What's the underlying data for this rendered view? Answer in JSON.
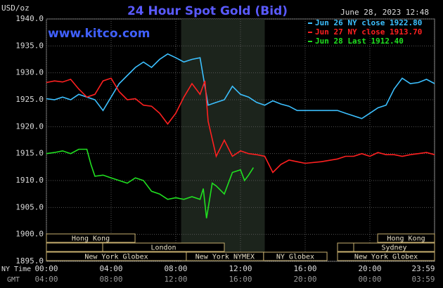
{
  "chart_data": {
    "type": "line",
    "title": "24 Hour Spot Gold (Bid)",
    "site": "www.kitco.com",
    "y_label": "USD/oz",
    "timestamp": "June 28, 2023 12:48",
    "x_row_label": "NY Time",
    "x2_row_label": "GMT",
    "xlim": [
      0,
      24
    ],
    "ylim": [
      1895,
      1940
    ],
    "xticks": [
      {
        "value": 0,
        "label": "00:00"
      },
      {
        "value": 4,
        "label": "04:00"
      },
      {
        "value": 8,
        "label": "08:00"
      },
      {
        "value": 12,
        "label": "12:00"
      },
      {
        "value": 16,
        "label": "16:00"
      },
      {
        "value": 20,
        "label": "20:00"
      },
      {
        "value": 23.98,
        "label": "23:59"
      }
    ],
    "x2tick_labels": [
      "04:00",
      "08:00",
      "12:00",
      "16:00",
      "20:00",
      "00:00",
      "03:59"
    ],
    "yticks": [
      {
        "value": 1940,
        "label": "1940.0"
      },
      {
        "value": 1935,
        "label": "1935.0"
      },
      {
        "value": 1930,
        "label": "1930.0"
      },
      {
        "value": 1925,
        "label": "1925.0"
      },
      {
        "value": 1920,
        "label": "1920.0"
      },
      {
        "value": 1915,
        "label": "1915.0"
      },
      {
        "value": 1910,
        "label": "1910.0"
      },
      {
        "value": 1905,
        "label": "1905.0"
      },
      {
        "value": 1900,
        "label": "1900.0"
      },
      {
        "value": 1895,
        "label": "1895.0"
      }
    ],
    "grid": true,
    "highlight": [
      8.33,
      13.5
    ],
    "sessions": [
      {
        "name": "Hong Kong",
        "start": 0,
        "end": 5.48,
        "row": 0
      },
      {
        "name": "Hong Kong",
        "start": 20.48,
        "end": 24,
        "row": 0
      },
      {
        "start": 0,
        "end": 3.48,
        "row": 1
      },
      {
        "name": "London",
        "start": 3.48,
        "end": 11.0,
        "row": 1
      },
      {
        "start": 18.0,
        "end": 19.0,
        "row": 1
      },
      {
        "name": "Sydney",
        "start": 19.0,
        "end": 24,
        "row": 1
      },
      {
        "name": "New York Globex",
        "start": 0,
        "end": 8.65,
        "row": 2
      },
      {
        "name": "New York NYMEX",
        "start": 8.65,
        "end": 13.43,
        "row": 2
      },
      {
        "name": "NY Globex",
        "start": 13.43,
        "end": 17.35,
        "row": 2
      },
      {
        "name": "New York Globex",
        "start": 18.0,
        "end": 24,
        "row": 2
      }
    ],
    "series": [
      {
        "name": "Jun 26 NY close 1922.80",
        "color": "#3cc0ff",
        "x": [
          0,
          0.5,
          1,
          1.5,
          2,
          2.5,
          3,
          3.5,
          4,
          4.5,
          5,
          5.5,
          6,
          6.5,
          7,
          7.5,
          8,
          8.5,
          9,
          9.5,
          10,
          10.5,
          11,
          11.5,
          12,
          12.5,
          13,
          13.5,
          14,
          14.5,
          15,
          15.5,
          16,
          17,
          18,
          18.5,
          19,
          19.5,
          20,
          20.5,
          21,
          21.5,
          22,
          22.5,
          23,
          23.5,
          24
        ],
        "values": [
          1925.2,
          1925.0,
          1925.5,
          1925.0,
          1926.0,
          1925.5,
          1925.0,
          1923.0,
          1925.5,
          1928.0,
          1929.5,
          1931.0,
          1932.0,
          1931.0,
          1932.5,
          1933.5,
          1932.8,
          1932.0,
          1932.5,
          1932.8,
          1924.0,
          1924.5,
          1925.0,
          1927.5,
          1926.0,
          1925.5,
          1924.5,
          1924.0,
          1924.8,
          1924.2,
          1923.8,
          1923.0,
          1923.0,
          1923.0,
          1923.0,
          1922.5,
          1922.0,
          1921.5,
          1922.5,
          1923.5,
          1924.0,
          1927.0,
          1929.0,
          1928.0,
          1928.2,
          1928.8,
          1928.0
        ]
      },
      {
        "name": "Jun 27 NY close 1913.70",
        "color": "#ff2020",
        "x": [
          0,
          0.5,
          1,
          1.5,
          2,
          2.5,
          3,
          3.5,
          4,
          4.5,
          5,
          5.5,
          6,
          6.5,
          7,
          7.5,
          8,
          8.5,
          9,
          9.5,
          9.8,
          10,
          10.5,
          11,
          11.5,
          12,
          12.5,
          13,
          13.5,
          14,
          14.5,
          15,
          15.5,
          16,
          17,
          18,
          18.5,
          19,
          19.5,
          20,
          20.5,
          21,
          21.5,
          22,
          22.5,
          23,
          23.5,
          24
        ],
        "values": [
          1928.2,
          1928.5,
          1928.3,
          1928.8,
          1927.0,
          1925.5,
          1926.0,
          1928.5,
          1929.0,
          1926.5,
          1925.0,
          1925.2,
          1924.0,
          1923.8,
          1922.5,
          1920.5,
          1922.5,
          1925.5,
          1928.0,
          1926.0,
          1928.5,
          1921.0,
          1914.5,
          1917.5,
          1914.5,
          1915.5,
          1915.0,
          1914.8,
          1914.5,
          1911.5,
          1913.0,
          1913.8,
          1913.5,
          1913.2,
          1913.5,
          1914.0,
          1914.5,
          1914.5,
          1915.0,
          1914.5,
          1915.2,
          1914.8,
          1914.8,
          1914.5,
          1914.8,
          1915.0,
          1915.2,
          1914.8
        ]
      },
      {
        "name": "Jun 28 Last 1912.40",
        "color": "#20e020",
        "x": [
          0,
          0.5,
          1,
          1.5,
          2,
          2.5,
          2.75,
          3,
          3.5,
          4,
          4.5,
          5,
          5.5,
          6,
          6.5,
          7,
          7.5,
          8,
          8.5,
          9,
          9.5,
          9.7,
          9.9,
          10.25,
          10.5,
          11,
          11.5,
          12,
          12.25,
          12.5,
          12.8
        ],
        "values": [
          1915.0,
          1915.2,
          1915.5,
          1915.0,
          1915.8,
          1915.8,
          1913.0,
          1910.8,
          1911.0,
          1910.5,
          1910.0,
          1909.5,
          1910.5,
          1910.0,
          1908.0,
          1907.5,
          1906.5,
          1906.8,
          1906.5,
          1907.0,
          1906.5,
          1908.5,
          1903.0,
          1909.5,
          1909.0,
          1907.5,
          1911.5,
          1912.0,
          1910.0,
          1911.0,
          1912.4
        ]
      }
    ]
  }
}
